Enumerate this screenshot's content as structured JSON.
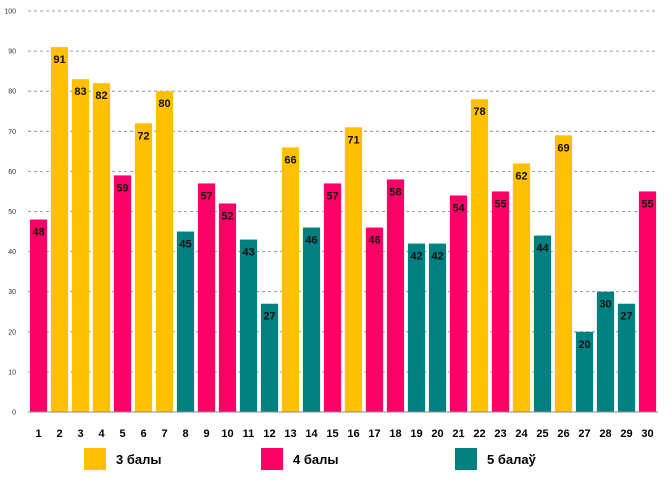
{
  "chart_data": {
    "type": "bar",
    "title": "",
    "xlabel": "",
    "ylabel": "",
    "ylim": [
      0,
      100
    ],
    "yticks": [
      0,
      10,
      20,
      30,
      40,
      50,
      60,
      70,
      80,
      90,
      100
    ],
    "grid": true,
    "categories": [
      "1",
      "2",
      "3",
      "4",
      "5",
      "6",
      "7",
      "8",
      "9",
      "10",
      "11",
      "12",
      "13",
      "14",
      "15",
      "16",
      "17",
      "18",
      "19",
      "20",
      "21",
      "22",
      "23",
      "24",
      "25",
      "26",
      "27",
      "28",
      "29",
      "30"
    ],
    "values": [
      48,
      91,
      83,
      82,
      59,
      72,
      80,
      45,
      57,
      52,
      43,
      27,
      66,
      46,
      57,
      71,
      46,
      58,
      42,
      42,
      54,
      78,
      55,
      62,
      44,
      69,
      20,
      30,
      27,
      55
    ],
    "groups": [
      "4 балы",
      "3 балы",
      "3 балы",
      "3 балы",
      "4 балы",
      "3 балы",
      "3 балы",
      "5 балаў",
      "4 балы",
      "4 балы",
      "5 балаў",
      "5 балаў",
      "3 балы",
      "5 балаў",
      "4 балы",
      "3 балы",
      "4 балы",
      "4 балы",
      "5 балаў",
      "5 балаў",
      "4 балы",
      "3 балы",
      "4 балы",
      "3 балы",
      "5 балаў",
      "3 балы",
      "5 балаў",
      "5 балаў",
      "5 балаў",
      "4 балы"
    ],
    "legend": [
      {
        "name": "3 балы",
        "color": "#FFC000"
      },
      {
        "name": "4 балы",
        "color": "#FF0066"
      },
      {
        "name": "5 балаў",
        "color": "#008080"
      }
    ],
    "legend_position": "bottom"
  }
}
